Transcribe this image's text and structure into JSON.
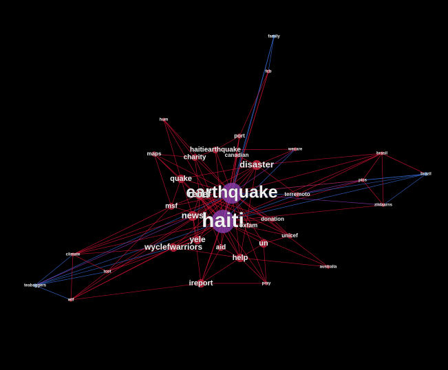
{
  "colors": {
    "background": "#000000",
    "edge_red": "#cc1133",
    "edge_blue": "#3366cc",
    "edge_purple": "#8833aa",
    "node_red": "#c0203a",
    "node_blue": "#3a7fd0",
    "node_purple": "#8a3fb0",
    "label": "#f0f0f0"
  },
  "nodes": [
    {
      "id": "haiti",
      "label": "haiti",
      "color": "purple",
      "weight": 10
    },
    {
      "id": "earthquake",
      "label": "earthquake",
      "color": "purple",
      "weight": 9
    },
    {
      "id": "disaster",
      "label": "disaster",
      "color": "red",
      "weight": 5
    },
    {
      "id": "news",
      "label": "news",
      "color": "red",
      "weight": 5
    },
    {
      "id": "wyclefwarriors",
      "label": "wyclefwarriors",
      "color": "red",
      "weight": 4
    },
    {
      "id": "help",
      "label": "help",
      "color": "red",
      "weight": 4
    },
    {
      "id": "ireport",
      "label": "ireport",
      "color": "red",
      "weight": 4
    },
    {
      "id": "yele",
      "label": "yele",
      "color": "red",
      "weight": 4
    },
    {
      "id": "quake",
      "label": "quake",
      "color": "red",
      "weight": 4
    },
    {
      "id": "relief",
      "label": "relief",
      "color": "red",
      "weight": 5
    },
    {
      "id": "haitiearthquake",
      "label": "haitiearthquake",
      "color": "red",
      "weight": 3
    },
    {
      "id": "charity",
      "label": "charity",
      "color": "red",
      "weight": 3
    },
    {
      "id": "un",
      "label": "un",
      "color": "red",
      "weight": 4
    },
    {
      "id": "aid",
      "label": "aid",
      "color": "red",
      "weight": 3
    },
    {
      "id": "msf",
      "label": "msf",
      "color": "red",
      "weight": 3
    },
    {
      "id": "oxfam",
      "label": "oxfam",
      "color": "red",
      "weight": 2
    },
    {
      "id": "donation",
      "label": "donation",
      "color": "red",
      "weight": 2
    },
    {
      "id": "unicef",
      "label": "unicef",
      "color": "red",
      "weight": 2
    },
    {
      "id": "terremoto",
      "label": "terremoto",
      "color": "red",
      "weight": 2
    },
    {
      "id": "canadian",
      "label": "canadian",
      "color": "red",
      "weight": 2
    },
    {
      "id": "maps",
      "label": "maps",
      "color": "red",
      "weight": 2
    },
    {
      "id": "port",
      "label": "port",
      "color": "red",
      "weight": 2
    },
    {
      "id": "wecare",
      "label": "wecare",
      "color": "red",
      "weight": 1
    },
    {
      "id": "hum",
      "label": "hum",
      "color": "red",
      "weight": 1
    },
    {
      "id": "fcb",
      "label": "fcb",
      "color": "red",
      "weight": 1
    },
    {
      "id": "family",
      "label": "family",
      "color": "blue",
      "weight": 1
    },
    {
      "id": "brasil",
      "label": "brasil",
      "color": "red",
      "weight": 1
    },
    {
      "id": "brazil",
      "label": "brazil",
      "color": "blue",
      "weight": 1
    },
    {
      "id": "pics",
      "label": "pics",
      "color": "red",
      "weight": 1
    },
    {
      "id": "zildaarns",
      "label": "zildaarns",
      "color": "red",
      "weight": 1
    },
    {
      "id": "australia",
      "label": "australia",
      "color": "red",
      "weight": 1
    },
    {
      "id": "pray",
      "label": "pray",
      "color": "red",
      "weight": 1
    },
    {
      "id": "climate",
      "label": "climate",
      "color": "red",
      "weight": 1
    },
    {
      "id": "tcot",
      "label": "tcot",
      "color": "red",
      "weight": 1
    },
    {
      "id": "teabaggers",
      "label": "teabaggers",
      "color": "blue",
      "weight": 1
    },
    {
      "id": "wtf",
      "label": "wtf",
      "color": "red",
      "weight": 1
    }
  ],
  "edges": [
    [
      "haiti",
      "earthquake",
      "purple"
    ],
    [
      "haiti",
      "disaster",
      "red"
    ],
    [
      "haiti",
      "news",
      "red"
    ],
    [
      "haiti",
      "wyclefwarriors",
      "red"
    ],
    [
      "haiti",
      "help",
      "red"
    ],
    [
      "haiti",
      "ireport",
      "red"
    ],
    [
      "haiti",
      "yele",
      "red"
    ],
    [
      "haiti",
      "quake",
      "red"
    ],
    [
      "haiti",
      "relief",
      "red"
    ],
    [
      "haiti",
      "haitiearthquake",
      "red"
    ],
    [
      "haiti",
      "charity",
      "red"
    ],
    [
      "haiti",
      "un",
      "red"
    ],
    [
      "haiti",
      "aid",
      "red"
    ],
    [
      "haiti",
      "msf",
      "red"
    ],
    [
      "haiti",
      "oxfam",
      "red"
    ],
    [
      "haiti",
      "donation",
      "red"
    ],
    [
      "haiti",
      "unicef",
      "red"
    ],
    [
      "haiti",
      "terremoto",
      "blue"
    ],
    [
      "haiti",
      "canadian",
      "red"
    ],
    [
      "haiti",
      "maps",
      "red"
    ],
    [
      "haiti",
      "port",
      "red"
    ],
    [
      "haiti",
      "wecare",
      "blue"
    ],
    [
      "haiti",
      "hum",
      "red"
    ],
    [
      "haiti",
      "fcb",
      "red"
    ],
    [
      "haiti",
      "family",
      "blue"
    ],
    [
      "haiti",
      "brasil",
      "red"
    ],
    [
      "haiti",
      "brazil",
      "blue"
    ],
    [
      "haiti",
      "pics",
      "red"
    ],
    [
      "haiti",
      "zildaarns",
      "red"
    ],
    [
      "haiti",
      "australia",
      "red"
    ],
    [
      "haiti",
      "pray",
      "red"
    ],
    [
      "haiti",
      "climate",
      "red"
    ],
    [
      "haiti",
      "tcot",
      "red"
    ],
    [
      "haiti",
      "teabaggers",
      "blue"
    ],
    [
      "haiti",
      "wtf",
      "red"
    ],
    [
      "earthquake",
      "disaster",
      "red"
    ],
    [
      "earthquake",
      "news",
      "red"
    ],
    [
      "earthquake",
      "wyclefwarriors",
      "red"
    ],
    [
      "earthquake",
      "help",
      "red"
    ],
    [
      "earthquake",
      "ireport",
      "red"
    ],
    [
      "earthquake",
      "yele",
      "red"
    ],
    [
      "earthquake",
      "quake",
      "red"
    ],
    [
      "earthquake",
      "relief",
      "red"
    ],
    [
      "earthquake",
      "haitiearthquake",
      "red"
    ],
    [
      "earthquake",
      "charity",
      "red"
    ],
    [
      "earthquake",
      "un",
      "red"
    ],
    [
      "earthquake",
      "aid",
      "red"
    ],
    [
      "earthquake",
      "msf",
      "red"
    ],
    [
      "earthquake",
      "terremoto",
      "blue"
    ],
    [
      "earthquake",
      "canadian",
      "red"
    ],
    [
      "earthquake",
      "maps",
      "red"
    ],
    [
      "earthquake",
      "port",
      "red"
    ],
    [
      "earthquake",
      "wecare",
      "purple"
    ],
    [
      "earthquake",
      "hum",
      "red"
    ],
    [
      "earthquake",
      "fcb",
      "red"
    ],
    [
      "earthquake",
      "family",
      "blue"
    ],
    [
      "earthquake",
      "brasil",
      "red"
    ],
    [
      "earthquake",
      "brazil",
      "blue"
    ],
    [
      "earthquake",
      "pics",
      "red"
    ],
    [
      "earthquake",
      "zildaarns",
      "purple"
    ],
    [
      "earthquake",
      "australia",
      "red"
    ],
    [
      "earthquake",
      "pray",
      "red"
    ],
    [
      "earthquake",
      "climate",
      "red"
    ],
    [
      "earthquake",
      "tcot",
      "red"
    ],
    [
      "earthquake",
      "teabaggers",
      "blue"
    ],
    [
      "earthquake",
      "wtf",
      "red"
    ],
    [
      "earthquake",
      "donation",
      "red"
    ],
    [
      "earthquake",
      "unicef",
      "red"
    ],
    [
      "earthquake",
      "oxfam",
      "red"
    ],
    [
      "disaster",
      "relief",
      "red"
    ],
    [
      "disaster",
      "news",
      "red"
    ],
    [
      "disaster",
      "help",
      "red"
    ],
    [
      "disaster",
      "quake",
      "red"
    ],
    [
      "disaster",
      "brasil",
      "red"
    ],
    [
      "news",
      "relief",
      "red"
    ],
    [
      "news",
      "quake",
      "red"
    ],
    [
      "news",
      "yele",
      "red"
    ],
    [
      "news",
      "ireport",
      "red"
    ],
    [
      "news",
      "climate",
      "red"
    ],
    [
      "relief",
      "aid",
      "red"
    ],
    [
      "relief",
      "help",
      "red"
    ],
    [
      "relief",
      "donation",
      "red"
    ],
    [
      "relief",
      "unicef",
      "red"
    ],
    [
      "relief",
      "msf",
      "red"
    ],
    [
      "relief",
      "charity",
      "red"
    ],
    [
      "relief",
      "yele",
      "red"
    ],
    [
      "relief",
      "oxfam",
      "red"
    ],
    [
      "wyclefwarriors",
      "yele",
      "red"
    ],
    [
      "wyclefwarriors",
      "help",
      "red"
    ],
    [
      "wyclefwarriors",
      "teabaggers",
      "blue"
    ],
    [
      "wyclefwarriors",
      "climate",
      "red"
    ],
    [
      "help",
      "aid",
      "red"
    ],
    [
      "help",
      "un",
      "red"
    ],
    [
      "help",
      "pray",
      "red"
    ],
    [
      "help",
      "australia",
      "red"
    ],
    [
      "charity",
      "haitiearthquake",
      "red"
    ],
    [
      "charity",
      "maps",
      "red"
    ],
    [
      "quake",
      "maps",
      "red"
    ],
    [
      "quake",
      "hum",
      "red"
    ],
    [
      "un",
      "unicef",
      "red"
    ],
    [
      "un",
      "pray",
      "red"
    ],
    [
      "aid",
      "ireport",
      "red"
    ],
    [
      "msf",
      "climate",
      "red"
    ],
    [
      "msf",
      "tcot",
      "red"
    ],
    [
      "fcb",
      "family",
      "blue"
    ],
    [
      "port",
      "fcb",
      "red"
    ],
    [
      "haitiearthquake",
      "port",
      "red"
    ],
    [
      "haitiearthquake",
      "wecare",
      "red"
    ],
    [
      "brasil",
      "brazil",
      "red"
    ],
    [
      "brasil",
      "pics",
      "red"
    ],
    [
      "brasil",
      "zildaarns",
      "red"
    ],
    [
      "pics",
      "brazil",
      "blue"
    ],
    [
      "pics",
      "zildaarns",
      "red"
    ],
    [
      "zildaarns",
      "brazil",
      "blue"
    ],
    [
      "terremoto",
      "brasil",
      "red"
    ],
    [
      "terremoto",
      "brazil",
      "blue"
    ],
    [
      "terremoto",
      "pics",
      "purple"
    ],
    [
      "disaster",
      "terremoto",
      "red"
    ],
    [
      "disaster",
      "wecare",
      "red"
    ],
    [
      "climate",
      "tcot",
      "red"
    ],
    [
      "climate",
      "teabaggers",
      "blue"
    ],
    [
      "climate",
      "wtf",
      "red"
    ],
    [
      "tcot",
      "teabaggers",
      "blue"
    ],
    [
      "tcot",
      "wtf",
      "red"
    ],
    [
      "teabaggers",
      "wtf",
      "blue"
    ],
    [
      "ireport",
      "wtf",
      "red"
    ],
    [
      "yele",
      "tcot",
      "red"
    ],
    [
      "wyclefwarriors",
      "wtf",
      "red"
    ],
    [
      "news",
      "teabaggers",
      "purple"
    ],
    [
      "ireport",
      "pray",
      "red"
    ],
    [
      "help",
      "ireport",
      "red"
    ],
    [
      "quake",
      "msf",
      "red"
    ],
    [
      "hum",
      "charity",
      "red"
    ],
    [
      "maps",
      "msf",
      "red"
    ],
    [
      "canadian",
      "disaster",
      "red"
    ],
    [
      "canadian",
      "port",
      "red"
    ],
    [
      "oxfam",
      "donation",
      "red"
    ],
    [
      "unicef",
      "donation",
      "red"
    ]
  ]
}
